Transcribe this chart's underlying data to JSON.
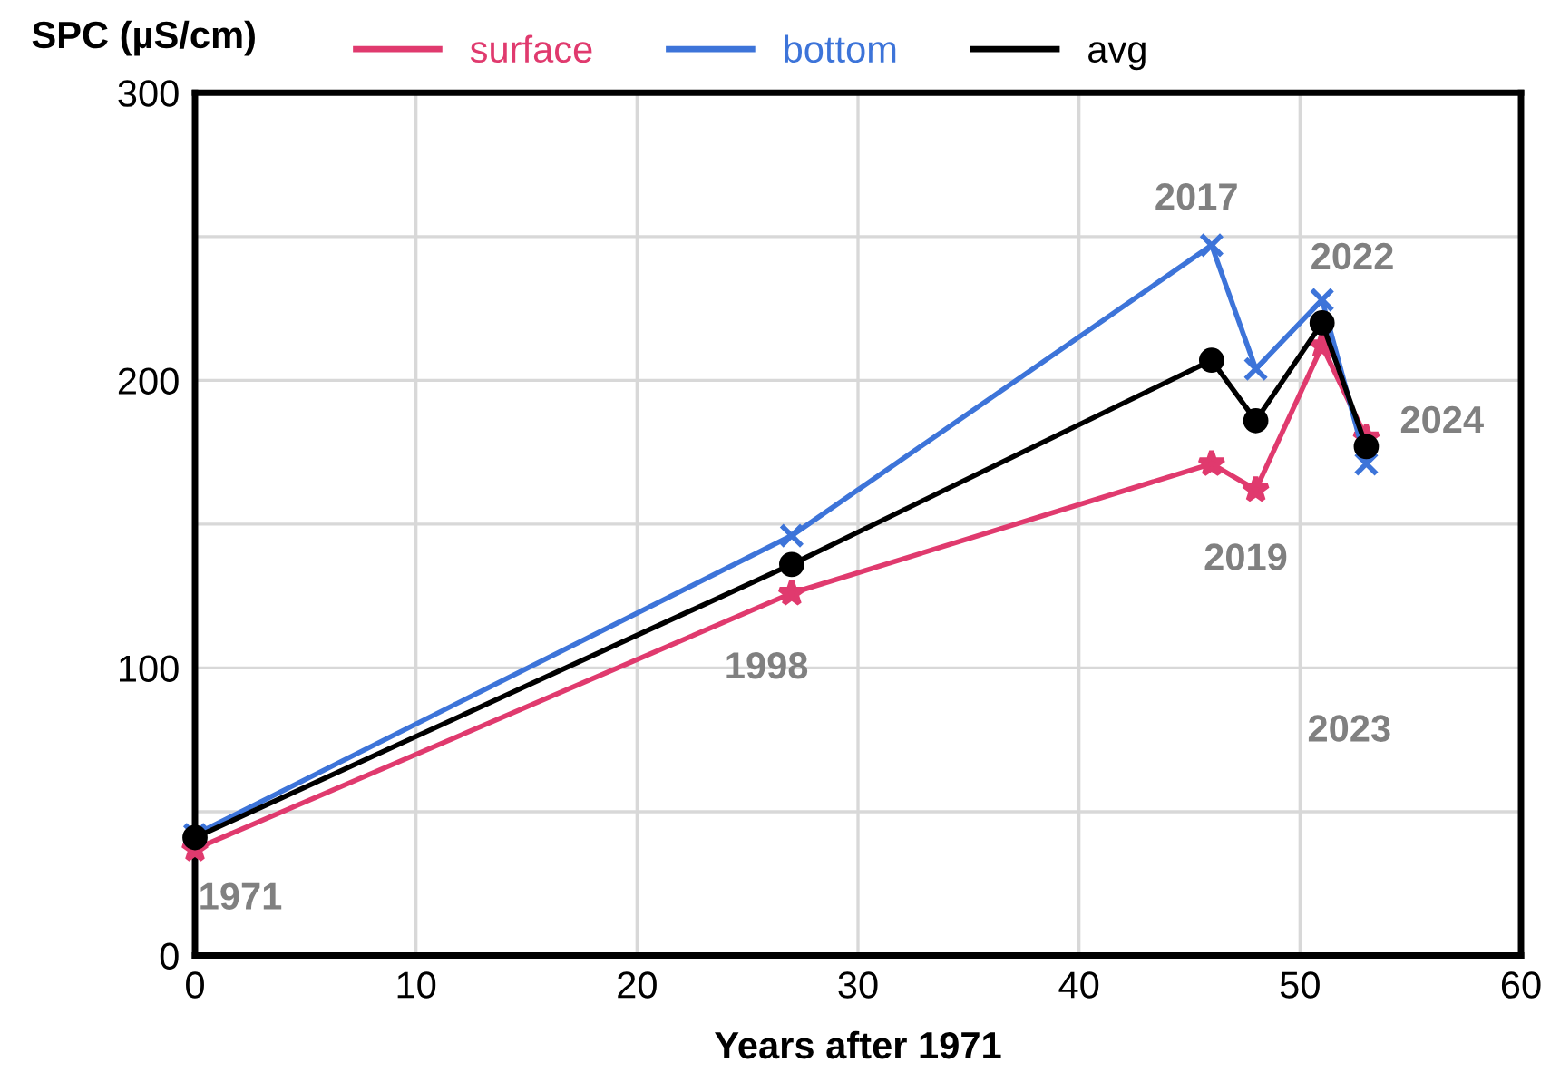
{
  "chart_data": {
    "type": "line",
    "ylabel": "SPC (µS/cm)",
    "xlabel": "Years after 1971",
    "xlim": [
      0,
      60
    ],
    "xticks": [
      0,
      10,
      20,
      30,
      40,
      50,
      60
    ],
    "ylim": [
      0,
      300
    ],
    "yticks": [
      0,
      {
        "value": 50,
        "label": null
      },
      100,
      {
        "value": 150,
        "label": null
      },
      200,
      {
        "value": 250,
        "label": null
      },
      300
    ],
    "grid": true,
    "legend": "top",
    "series": [
      {
        "name": "surface",
        "color": "#e03a6e",
        "marker": "star",
        "x": [
          0,
          27,
          46,
          48,
          51,
          53
        ],
        "values": [
          37,
          126,
          171,
          162,
          212,
          180
        ]
      },
      {
        "name": "bottom",
        "color": "#3d74d9",
        "marker": "cross",
        "x": [
          0,
          27,
          46,
          48,
          51,
          53
        ],
        "values": [
          42,
          146,
          247,
          204,
          228,
          171
        ]
      },
      {
        "name": "avg",
        "color": "#000000",
        "marker": "circle",
        "x": [
          0,
          27,
          46,
          48,
          51,
          53
        ],
        "values": [
          41,
          136,
          207,
          186,
          220,
          177
        ]
      }
    ],
    "annotations": [
      {
        "text": "1971",
        "x": 0,
        "y": 37
      },
      {
        "text": "1998",
        "x": 27,
        "y": 126
      },
      {
        "text": "2017",
        "x": 46,
        "y": 247
      },
      {
        "text": "2019",
        "x": 48,
        "y": 162
      },
      {
        "text": "2022",
        "x": 51,
        "y": 228
      },
      "2023",
      {
        "text": "2024",
        "x": 53,
        "y": 180
      }
    ]
  }
}
